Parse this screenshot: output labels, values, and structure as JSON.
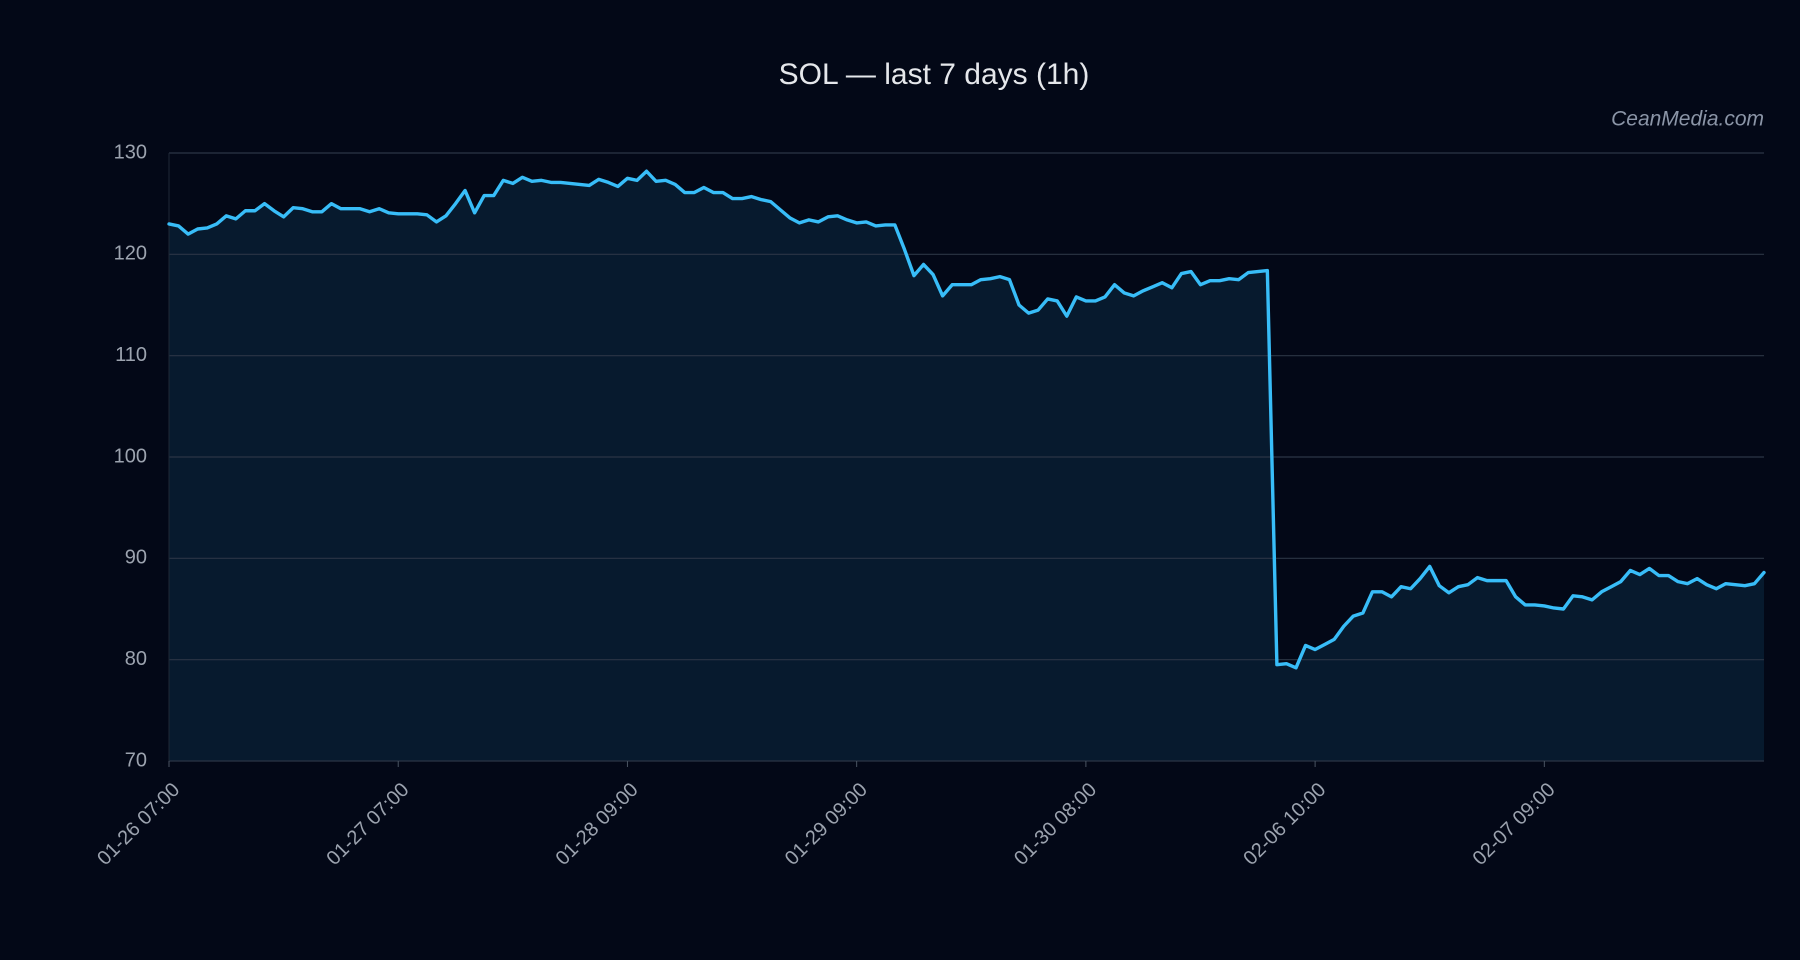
{
  "chart_data": {
    "type": "line",
    "title": "SOL — last 7 days (1h)",
    "watermark": "CeanMedia.com",
    "categories": [
      "01-26 07:00",
      null,
      null,
      null,
      null,
      null,
      null,
      null,
      null,
      null,
      null,
      null,
      null,
      null,
      null,
      null,
      null,
      null,
      null,
      null,
      null,
      null,
      null,
      null,
      "01-27 07:00",
      null,
      null,
      null,
      null,
      null,
      null,
      null,
      null,
      null,
      null,
      null,
      null,
      null,
      null,
      null,
      null,
      null,
      null,
      null,
      null,
      null,
      null,
      null,
      "01-28 09:00",
      null,
      null,
      null,
      null,
      null,
      null,
      null,
      null,
      null,
      null,
      null,
      null,
      null,
      null,
      null,
      null,
      null,
      null,
      null,
      null,
      null,
      null,
      null,
      "01-29 09:00",
      null,
      null,
      null,
      null,
      null,
      null,
      null,
      null,
      null,
      null,
      null,
      null,
      null,
      null,
      null,
      null,
      null,
      null,
      null,
      null,
      null,
      null,
      null,
      "01-30 08:00",
      null,
      null,
      null,
      null,
      null,
      null,
      null,
      null,
      null,
      null,
      null,
      null,
      null,
      null,
      null,
      null,
      null,
      null,
      null,
      null,
      null,
      null,
      null,
      "02-06 10:00",
      null,
      null,
      null,
      null,
      null,
      null,
      null,
      null,
      null,
      null,
      null,
      null,
      null,
      null,
      null,
      null,
      null,
      null,
      null,
      null,
      null,
      null,
      null,
      "02-07 09:00",
      null,
      null,
      null,
      null,
      null,
      null,
      null,
      null,
      null,
      null,
      null,
      null,
      null,
      null,
      null,
      null,
      null,
      null,
      null,
      null,
      null,
      null,
      null
    ],
    "values": [
      123,
      122.8,
      122,
      122.5,
      122.6,
      123,
      123.8,
      123.5,
      124.3,
      124.3,
      125,
      124.3,
      123.7,
      124.6,
      124.5,
      124.2,
      124.2,
      125,
      124.5,
      124.5,
      124.5,
      124.2,
      124.5,
      124.1,
      124,
      124,
      124,
      123.9,
      123.2,
      123.8,
      125,
      126.3,
      124.1,
      125.8,
      125.8,
      127.3,
      127,
      127.6,
      127.2,
      127.3,
      127.1,
      127.1,
      127,
      126.9,
      126.8,
      127.4,
      127.1,
      126.7,
      127.5,
      127.3,
      128.2,
      127.2,
      127.3,
      126.9,
      126.1,
      126.1,
      126.6,
      126.1,
      126.1,
      125.5,
      125.5,
      125.7,
      125.4,
      125.2,
      124.4,
      123.6,
      123.1,
      123.4,
      123.2,
      123.7,
      123.8,
      123.4,
      123.1,
      123.2,
      122.8,
      122.9,
      122.9,
      120.5,
      117.9,
      119,
      118,
      115.9,
      117,
      117,
      117,
      117.5,
      117.6,
      117.8,
      117.5,
      115,
      114.2,
      114.5,
      115.6,
      115.4,
      113.9,
      115.8,
      115.4,
      115.4,
      115.8,
      117,
      116.2,
      115.9,
      116.4,
      116.8,
      117.2,
      116.7,
      118.1,
      118.3,
      117,
      117.4,
      117.4,
      117.6,
      117.5,
      118.2,
      118.3,
      118.4,
      79.5,
      79.6,
      79.2,
      81.4,
      81,
      81.5,
      82,
      83.3,
      84.3,
      84.6,
      86.7,
      86.7,
      86.2,
      87.2,
      87,
      88,
      89.2,
      87.3,
      86.6,
      87.2,
      87.4,
      88.1,
      87.8,
      87.8,
      87.8,
      86.2,
      85.4,
      85.4,
      85.3,
      85.1,
      85,
      86.3,
      86.2,
      85.9,
      86.7,
      87.2,
      87.7,
      88.8,
      88.4,
      89,
      88.3,
      88.3,
      87.7,
      87.5,
      88,
      87.4,
      87,
      87.5,
      87.4,
      87.3,
      87.5,
      88.6
    ],
    "color": "#38bdf8",
    "fill_color": "#071a2e",
    "ylim": [
      70,
      130
    ],
    "yticks": [
      70,
      80,
      90,
      100,
      110,
      120,
      130
    ],
    "grid": true
  }
}
